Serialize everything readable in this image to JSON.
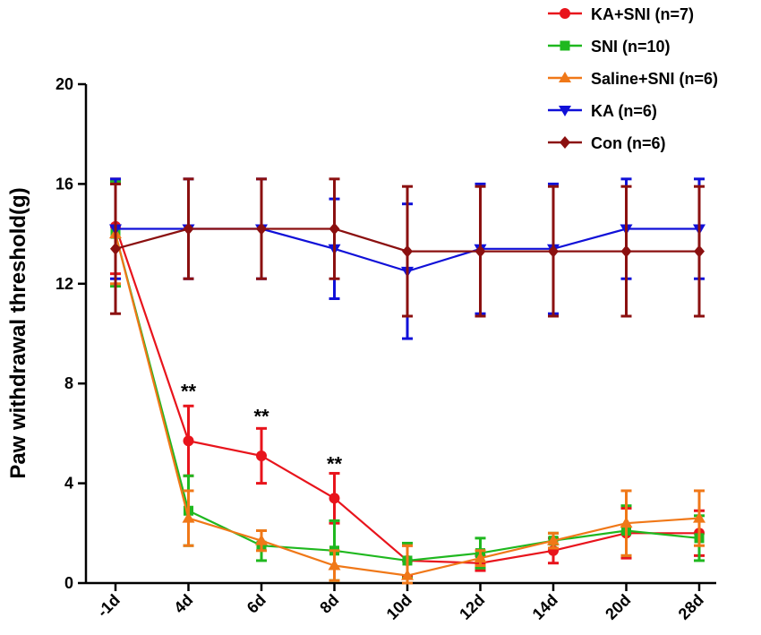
{
  "chart_data": {
    "type": "line",
    "title": "",
    "xlabel": "",
    "ylabel": "Paw withdrawal threshold(g)",
    "ylim": [
      0,
      20
    ],
    "yticks": [
      "0",
      "4",
      "8",
      "12",
      "16",
      "20"
    ],
    "categories": [
      "-1d",
      "4d",
      "6d",
      "8d",
      "10d",
      "12d",
      "14d",
      "20d",
      "28d"
    ],
    "legend_position": "top-right",
    "series": [
      {
        "name": "KA+SNI (n=7)",
        "color": "#e8141c",
        "marker": "circle",
        "values": [
          14.3,
          5.7,
          5.1,
          3.4,
          0.9,
          0.8,
          1.3,
          2.0,
          2.0
        ],
        "errors": [
          1.9,
          1.4,
          1.1,
          1.0,
          0.6,
          0.3,
          0.5,
          1.0,
          0.9
        ]
      },
      {
        "name": "SNI (n=10)",
        "color": "#1fb81f",
        "marker": "square",
        "values": [
          14.0,
          2.9,
          1.5,
          1.3,
          0.9,
          1.2,
          1.7,
          2.1,
          1.8
        ],
        "errors": [
          2.1,
          1.4,
          0.6,
          1.2,
          0.7,
          0.6,
          0.3,
          1.0,
          0.9
        ]
      },
      {
        "name": "Saline+SNI (n=6)",
        "color": "#f07818",
        "marker": "triangle-up",
        "values": [
          14.0,
          2.6,
          1.7,
          0.7,
          0.3,
          1.0,
          1.7,
          2.4,
          2.6
        ],
        "errors": [
          2.0,
          1.1,
          0.4,
          0.6,
          1.2,
          0.3,
          0.3,
          1.3,
          1.1
        ]
      },
      {
        "name": "KA (n=6)",
        "color": "#1010d8",
        "marker": "triangle-down",
        "values": [
          14.2,
          14.2,
          14.2,
          13.4,
          12.5,
          13.4,
          13.4,
          14.2,
          14.2
        ],
        "errors": [
          2.0,
          2.0,
          2.0,
          2.0,
          2.7,
          2.6,
          2.6,
          2.0,
          2.0
        ]
      },
      {
        "name": "Con (n=6)",
        "color": "#8b1010",
        "marker": "diamond",
        "values": [
          13.4,
          14.2,
          14.2,
          14.2,
          13.3,
          13.3,
          13.3,
          13.3,
          13.3
        ],
        "errors": [
          2.6,
          2.0,
          2.0,
          2.0,
          2.6,
          2.6,
          2.6,
          2.6,
          2.6
        ]
      }
    ],
    "annotations": [
      {
        "text": "**",
        "category": "4d",
        "y": 7.7
      },
      {
        "text": "**",
        "category": "6d",
        "y": 6.7
      },
      {
        "text": "**",
        "category": "8d",
        "y": 4.8
      }
    ]
  }
}
